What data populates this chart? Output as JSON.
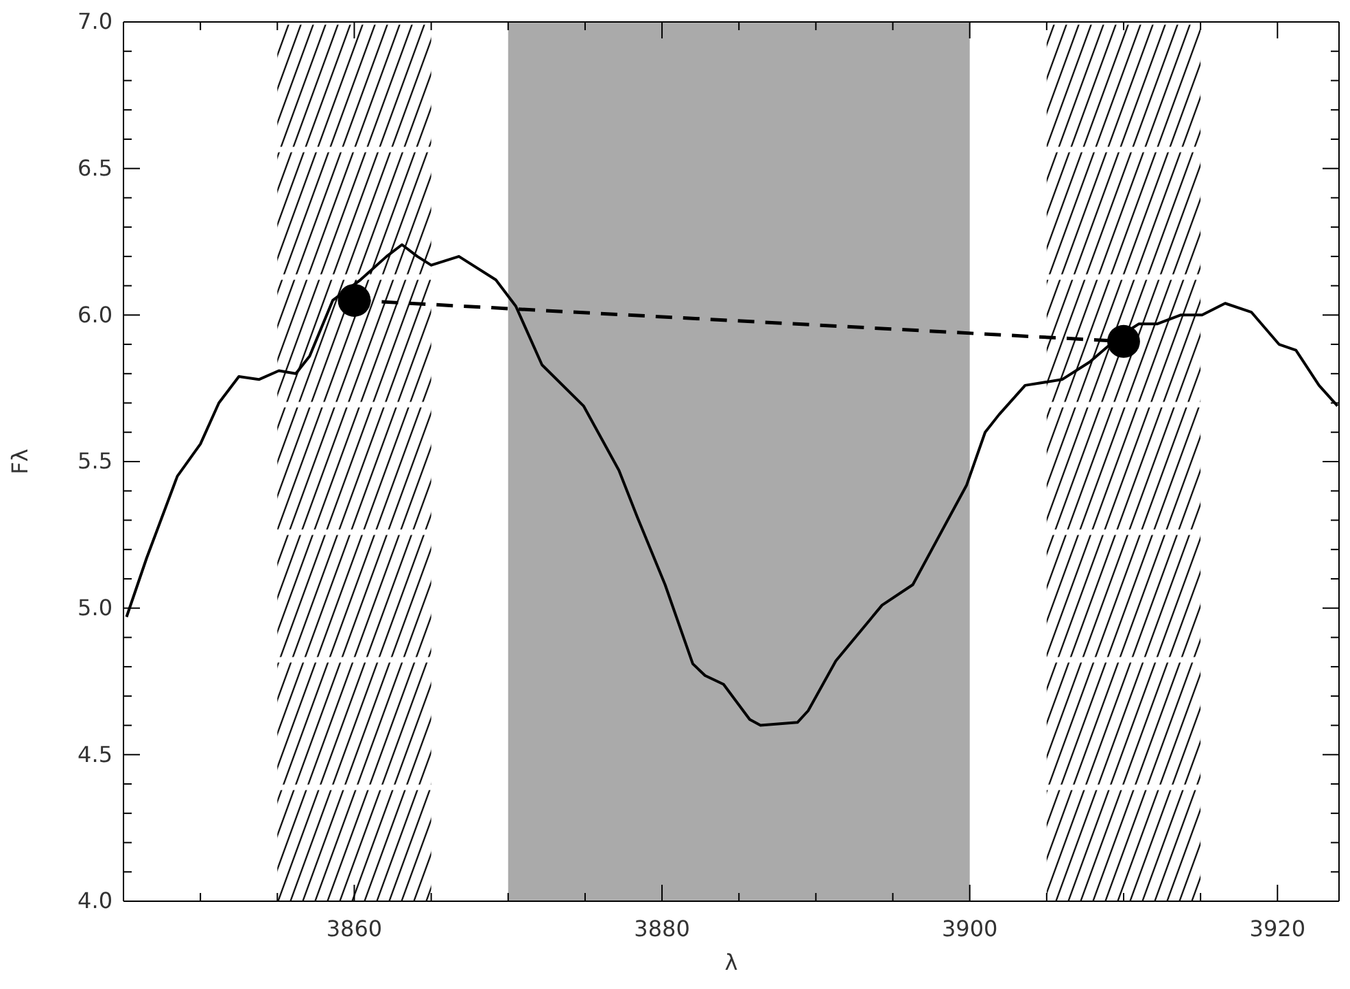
{
  "chart_data": {
    "type": "line",
    "xlabel": "λ",
    "ylabel": "Fλ",
    "xlim": [
      3845,
      3924
    ],
    "ylim": [
      4.0,
      7.0
    ],
    "xticks": [
      {
        "value": 3850,
        "label": null
      },
      {
        "value": 3855,
        "label": null
      },
      3860,
      {
        "value": 3865,
        "label": null
      },
      {
        "value": 3870,
        "label": null
      },
      {
        "value": 3875,
        "label": null
      },
      3880,
      {
        "value": 3885,
        "label": null
      },
      {
        "value": 3890,
        "label": null
      },
      {
        "value": 3895,
        "label": null
      },
      3900,
      {
        "value": 3905,
        "label": null
      },
      {
        "value": 3910,
        "label": null
      },
      {
        "value": 3915,
        "label": null
      },
      3920
    ],
    "yticks": [
      {
        "value": 4.0,
        "label": "4.0"
      },
      {
        "value": 4.1,
        "label": null
      },
      {
        "value": 4.2,
        "label": null
      },
      {
        "value": 4.3,
        "label": null
      },
      {
        "value": 4.4,
        "label": null
      },
      {
        "value": 4.5,
        "label": "4.5"
      },
      {
        "value": 4.6,
        "label": null
      },
      {
        "value": 4.7,
        "label": null
      },
      {
        "value": 4.8,
        "label": null
      },
      {
        "value": 4.9,
        "label": null
      },
      {
        "value": 5.0,
        "label": "5.0"
      },
      {
        "value": 5.1,
        "label": null
      },
      {
        "value": 5.2,
        "label": null
      },
      {
        "value": 5.3,
        "label": null
      },
      {
        "value": 5.4,
        "label": null
      },
      {
        "value": 5.5,
        "label": "5.5"
      },
      {
        "value": 5.6,
        "label": null
      },
      {
        "value": 5.7,
        "label": null
      },
      {
        "value": 5.8,
        "label": null
      },
      {
        "value": 5.9,
        "label": null
      },
      {
        "value": 6.0,
        "label": "6.0"
      },
      {
        "value": 6.1,
        "label": null
      },
      {
        "value": 6.2,
        "label": null
      },
      {
        "value": 6.3,
        "label": null
      },
      {
        "value": 6.4,
        "label": null
      },
      {
        "value": 6.5,
        "label": "6.5"
      },
      {
        "value": 6.6,
        "label": null
      },
      {
        "value": 6.7,
        "label": null
      },
      {
        "value": 6.8,
        "label": null
      },
      {
        "value": 6.9,
        "label": null
      },
      {
        "value": 7.0,
        "label": "7.0"
      }
    ],
    "grid": false,
    "bands": [
      {
        "axis": "x",
        "from": 3870,
        "to": 3900,
        "color": "#aaaaaa"
      },
      {
        "axis": "x",
        "from": 3855,
        "to": 3865
      },
      {
        "axis": "x",
        "from": 3905,
        "to": 3915
      }
    ],
    "series": [
      {
        "color": "#000000",
        "line_style": "solid",
        "marker": "none",
        "x": [
          3845.2,
          3846.5,
          3848.5,
          3850.0,
          3851.2,
          3852.5,
          3853.8,
          3855.1,
          3856.2,
          3857.1,
          3858.6,
          3860.4,
          3862.1,
          3863.1,
          3864.1,
          3865.0,
          3866.8,
          3869.2,
          3870.5,
          3872.2,
          3874.9,
          3877.2,
          3878.4,
          3880.2,
          3882.0,
          3882.8,
          3884.0,
          3885.7,
          3886.4,
          3888.8,
          3889.5,
          3891.3,
          3894.3,
          3896.3,
          3899.8,
          3901.0,
          3901.9,
          3903.6,
          3906.0,
          3907.8,
          3909.8,
          3911.0,
          3912.2,
          3913.7,
          3915.1,
          3916.6,
          3918.3,
          3920.1,
          3921.2,
          3922.7,
          3923.9
        ],
        "values": [
          4.97,
          5.17,
          5.45,
          5.56,
          5.7,
          5.79,
          5.78,
          5.81,
          5.8,
          5.86,
          6.05,
          6.12,
          6.2,
          6.24,
          6.2,
          6.17,
          6.2,
          6.12,
          6.03,
          5.83,
          5.69,
          5.47,
          5.31,
          5.08,
          4.81,
          4.77,
          4.74,
          4.62,
          4.6,
          4.61,
          4.65,
          4.82,
          5.01,
          5.08,
          5.42,
          5.6,
          5.66,
          5.76,
          5.78,
          5.84,
          5.93,
          5.97,
          5.97,
          6.0,
          6.0,
          6.04,
          6.01,
          5.9,
          5.88,
          5.76,
          5.69
        ]
      },
      {
        "color": "#000000",
        "line_style": "dashed",
        "marker": "circle",
        "x": [
          3860,
          3910
        ],
        "values": [
          6.05,
          5.91
        ]
      }
    ]
  }
}
